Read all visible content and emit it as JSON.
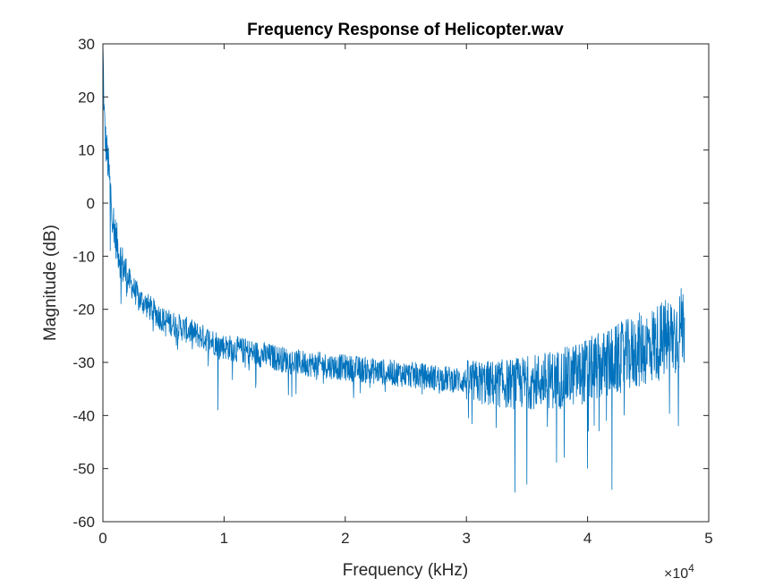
{
  "chart_data": {
    "type": "line",
    "title": "Frequency Response of Helicopter.wav",
    "xlabel": "Frequency (kHz)",
    "ylabel": "Magnitude (dB)",
    "xlim": [
      0,
      50000
    ],
    "ylim": [
      -60,
      30
    ],
    "x_tick_values": [
      0,
      10000,
      20000,
      30000,
      40000,
      50000
    ],
    "x_tick_labels": [
      "0",
      "1",
      "2",
      "3",
      "4",
      "5"
    ],
    "x_exponent_label": {
      "base": "×10",
      "power": "4"
    },
    "y_tick_values": [
      30,
      20,
      10,
      0,
      -10,
      -20,
      -30,
      -40,
      -50,
      -60
    ],
    "y_tick_labels": [
      "30",
      "20",
      "10",
      "0",
      "-10",
      "-20",
      "-30",
      "-40",
      "-50",
      "-60"
    ],
    "grid": false,
    "line_color": "#0072BD",
    "series": [
      {
        "x": [
          0,
          100,
          200,
          400,
          600,
          800,
          1000,
          1500,
          2000,
          2500,
          3000,
          3500,
          4000,
          5000,
          6000,
          7000,
          8000,
          9000,
          10000,
          12000,
          14000,
          16000,
          18000,
          20000,
          22000,
          24000,
          26000,
          28000,
          30000,
          32000,
          34000,
          36000,
          38000,
          40000,
          42000,
          44000,
          46000,
          47000,
          48000
        ],
        "y": [
          30,
          17,
          12,
          8,
          3,
          -2,
          -6,
          -11,
          -14,
          -16,
          -18,
          -19,
          -20,
          -22,
          -23,
          -24,
          -25,
          -26,
          -27,
          -28,
          -29,
          -30,
          -30.5,
          -31,
          -31.5,
          -32,
          -32.5,
          -33,
          -33.5,
          -34,
          -34,
          -33.5,
          -33,
          -31.5,
          -30,
          -28,
          -26,
          -25,
          -23
        ],
        "dips": [
          {
            "x": 9500,
            "y": -17
          },
          {
            "x": 9500,
            "y": -39
          },
          {
            "x": 600,
            "y": -9
          },
          {
            "x": 1500,
            "y": -19
          },
          {
            "x": 34000,
            "y": -54.5
          },
          {
            "x": 35000,
            "y": -53
          },
          {
            "x": 42000,
            "y": -54
          },
          {
            "x": 40000,
            "y": -50
          },
          {
            "x": 47500,
            "y": -42
          },
          {
            "x": 47800,
            "y": -18.5
          }
        ]
      }
    ]
  }
}
